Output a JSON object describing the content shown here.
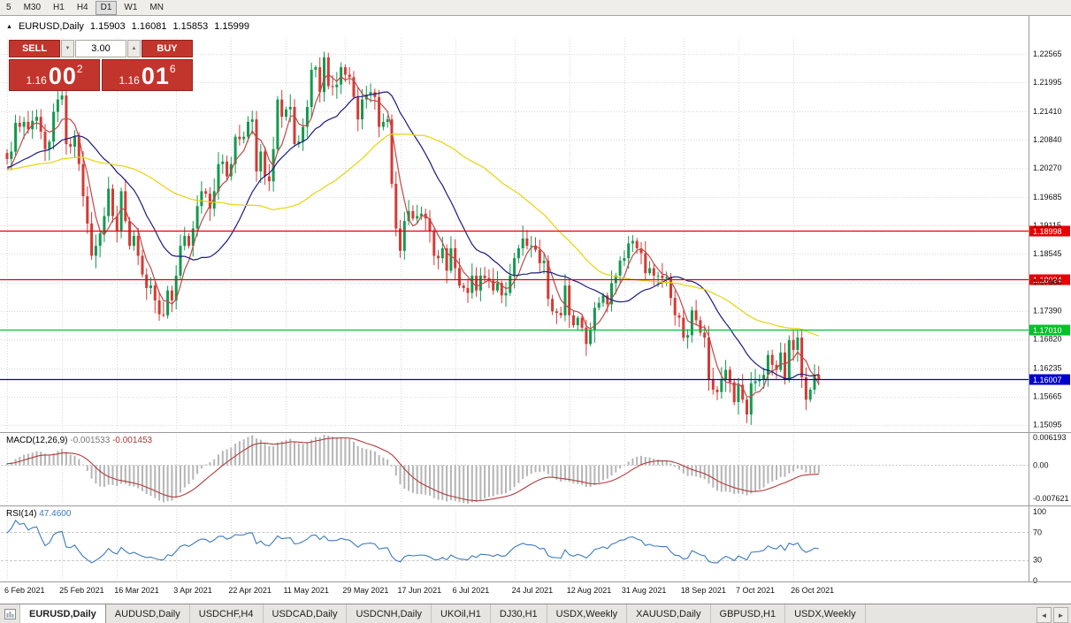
{
  "icons": {
    "marker": "▲",
    "vol_down": "▼",
    "vol_up": "▲",
    "scroll_left": "◄",
    "scroll_right": "►"
  },
  "colors": {
    "panel_red": "#c2352c",
    "candle_up": "#119a4e",
    "candle_down": "#d43a35",
    "macd_histogram": "#b5b5b5",
    "macd_signal": "#b23b3b",
    "rsi_line": "#3a7abf",
    "grid": "#d7d7d7"
  },
  "toolbar": {
    "timeframes": [
      "5",
      "M30",
      "H1",
      "H4",
      "D1",
      "W1",
      "MN"
    ],
    "active": "D1"
  },
  "chart": {
    "title": {
      "symbol_period": "EURUSD,Daily",
      "open": "1.15903",
      "high": "1.16081",
      "low": "1.15853",
      "close": "1.15999"
    },
    "trade_panel": {
      "sell_label": "SELL",
      "buy_label": "BUY",
      "volume": "3.00",
      "bid": {
        "small": "1.16",
        "big": "00",
        "sup": "2"
      },
      "ask": {
        "small": "1.16",
        "big": "01",
        "sup": "6"
      }
    }
  },
  "macd": {
    "label": "MACD(12,26,9)",
    "value_main": "-0.001533",
    "value_signal": "-0.001453",
    "axis_top": "0.006193",
    "axis_zero": "0.00",
    "axis_bottom": "-0.007621",
    "params": [
      12,
      26,
      9
    ]
  },
  "rsi": {
    "label": "RSI(14)",
    "value": "47.4600",
    "axis": [
      "100",
      "70",
      "30",
      "0"
    ],
    "levels": [
      70,
      30
    ],
    "period": 14
  },
  "tabs": {
    "items": [
      "EURUSD,Daily",
      "AUDUSD,Daily",
      "USDCHF,H4",
      "USDCAD,Daily",
      "USDCNH,Daily",
      "UKOil,H1",
      "DJ30,H1",
      "USDX,Weekly",
      "XAUUSD,Daily",
      "GBPUSD,H1",
      "USDX,Weekly"
    ],
    "active_index": 0
  },
  "chart_data": {
    "type": "candlestick",
    "symbol": "EURUSD",
    "period": "Daily",
    "title": "EURUSD,Daily 1.15903 1.16081 1.15853 1.15999",
    "ohlc_display": {
      "open": 1.15903,
      "high": 1.16081,
      "low": 1.15853,
      "close": 1.15999
    },
    "ylim": [
      1.1498,
      1.2289
    ],
    "y_ticks": [
      "1.22565",
      "1.21995",
      "1.21410",
      "1.20840",
      "1.20270",
      "1.19685",
      "1.19115",
      "1.18545",
      "1.17960",
      "1.17390",
      "1.16820",
      "1.16235",
      "1.15665",
      "1.15095"
    ],
    "x_labels": [
      {
        "label": "6 Feb 2021",
        "index": 0
      },
      {
        "label": "25 Feb 2021",
        "index": 13
      },
      {
        "label": "16 Mar 2021",
        "index": 26
      },
      {
        "label": "3 Apr 2021",
        "index": 40
      },
      {
        "label": "22 Apr 2021",
        "index": 53
      },
      {
        "label": "11 May 2021",
        "index": 66
      },
      {
        "label": "29 May 2021",
        "index": 80
      },
      {
        "label": "17 Jun 2021",
        "index": 93
      },
      {
        "label": "6 Jul 2021",
        "index": 106
      },
      {
        "label": "24 Jul 2021",
        "index": 120
      },
      {
        "label": "12 Aug 2021",
        "index": 133
      },
      {
        "label": "31 Aug 2021",
        "index": 146
      },
      {
        "label": "18 Sep 2021",
        "index": 160
      },
      {
        "label": "7 Oct 2021",
        "index": 173
      },
      {
        "label": "26 Oct 2021",
        "index": 186
      }
    ],
    "closes": [
      1.2045,
      1.206,
      1.2118,
      1.211,
      1.212,
      1.2105,
      1.2122,
      1.213,
      1.21,
      1.2065,
      1.208,
      1.214,
      1.2165,
      1.2173,
      1.2075,
      1.207,
      1.209,
      1.2035,
      1.197,
      1.1915,
      1.185,
      1.187,
      1.1895,
      1.193,
      1.1985,
      1.193,
      1.19,
      1.198,
      1.192,
      1.187,
      1.189,
      1.185,
      1.1812,
      1.1785,
      1.179,
      1.176,
      1.1732,
      1.173,
      1.178,
      1.176,
      1.181,
      1.187,
      1.189,
      1.187,
      1.1905,
      1.195,
      1.198,
      1.1975,
      1.1945,
      1.198,
      1.2035,
      1.204,
      1.201,
      1.2035,
      1.209,
      1.2085,
      1.209,
      1.212,
      1.2125,
      1.202,
      1.206,
      1.201,
      1.2,
      1.2065,
      1.2165,
      1.213,
      1.2145,
      1.215,
      1.2075,
      1.208,
      1.211,
      1.215,
      1.2225,
      1.223,
      1.218,
      1.225,
      1.2192,
      1.219,
      1.2195,
      1.223,
      1.2215,
      1.221,
      1.217,
      1.2125,
      1.2165,
      1.2175,
      1.218,
      1.217,
      1.211,
      1.212,
      1.2125,
      1.1995,
      1.1905,
      1.186,
      1.192,
      1.194,
      1.1925,
      1.193,
      1.1935,
      1.1925,
      1.19,
      1.185,
      1.1845,
      1.1865,
      1.182,
      1.1865,
      1.1825,
      1.179,
      1.1785,
      1.1775,
      1.181,
      1.178,
      1.181,
      1.1805,
      1.18,
      1.178,
      1.1795,
      1.177,
      1.1775,
      1.181,
      1.1845,
      1.1865,
      1.1885,
      1.187,
      1.187,
      1.1862,
      1.1835,
      1.184,
      1.1763,
      1.1738,
      1.1735,
      1.173,
      1.179,
      1.173,
      1.171,
      1.1725,
      1.1705,
      1.1672,
      1.17,
      1.1745,
      1.1755,
      1.177,
      1.1752,
      1.1795,
      1.181,
      1.184,
      1.1845,
      1.1875,
      1.188,
      1.1865,
      1.1855,
      1.1815,
      1.1825,
      1.181,
      1.181,
      1.1805,
      1.1807,
      1.1765,
      1.173,
      1.1725,
      1.1685,
      1.169,
      1.174,
      1.172,
      1.1695,
      1.1685,
      1.16,
      1.158,
      1.1575,
      1.16,
      1.162,
      1.1595,
      1.1555,
      1.159,
      1.156,
      1.153,
      1.1593,
      1.1597,
      1.16,
      1.161,
      1.165,
      1.163,
      1.162,
      1.1655,
      1.16,
      1.168,
      1.166,
      1.1685,
      1.1605,
      1.156,
      1.158,
      1.161,
      1.16
    ],
    "moving_averages": [
      {
        "name": "fast",
        "period": 5,
        "color": "#c04848"
      },
      {
        "name": "medium",
        "period": 20,
        "color": "#1b1b7e"
      },
      {
        "name": "slow",
        "period": 50,
        "color": "#e6d40a"
      }
    ],
    "hlines": [
      {
        "price": 1.18998,
        "label": "1.18998",
        "color": "#e60000"
      },
      {
        "price": 1.18024,
        "label": "1.18024",
        "color": "#e60000"
      },
      {
        "price": 1.1701,
        "label": "1.17010",
        "color": "#00c22a"
      },
      {
        "price": 1.16007,
        "label": "1.16007",
        "color": "#0000cc"
      }
    ]
  }
}
